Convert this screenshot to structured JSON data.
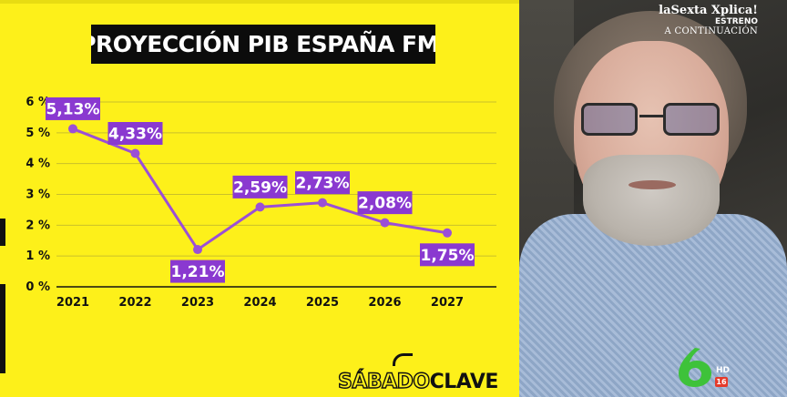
{
  "chart_data": {
    "type": "line",
    "title": "PROYECCIÓN PIB ESPAÑA FMI",
    "xlabel": "",
    "ylabel": "",
    "x": [
      "2021",
      "2022",
      "2023",
      "2024",
      "2025",
      "2026",
      "2027"
    ],
    "values": [
      5.13,
      4.33,
      1.21,
      2.59,
      2.73,
      2.08,
      1.75
    ],
    "data_labels": [
      "5,13%",
      "4,33%",
      "1,21%",
      "2,59%",
      "2,73%",
      "2,08%",
      "1,75%"
    ],
    "ylim": [
      0,
      6
    ],
    "yticks": [
      "0 %",
      "1 %",
      "2 %",
      "3 %",
      "4 %",
      "5 %",
      "6 %"
    ],
    "grid": true,
    "legend": "none",
    "colors": {
      "line": "#9b4fd6",
      "label_bg": "#8a39d0",
      "background": "#fdf01a",
      "gridline": "#c9c02a"
    }
  },
  "branding": {
    "program_logo_part1": "SÁBADO",
    "program_logo_part2": "CLAVE"
  },
  "video_overlay": {
    "channel_name": "laSexta Xplica!",
    "estreno": "ESTRENO",
    "continuacion": "A CONTINUACIÓN",
    "hd": "HD",
    "age_rating": "16",
    "network_logo_color": "#3ec23a"
  }
}
